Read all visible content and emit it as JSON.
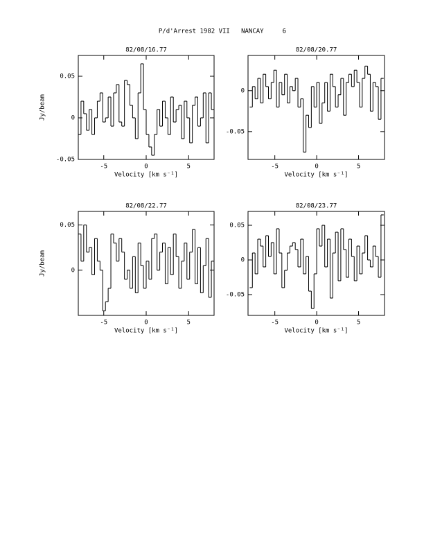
{
  "page_title": "P/d'Arrest 1982 VII   NANCAY     6",
  "chart_data": [
    {
      "type": "line",
      "step": true,
      "title": "82/08/16.77",
      "xlabel": "Velocity [km s⁻¹]",
      "ylabel": "Jy/beam",
      "color": "#000000",
      "xlim": [
        -8,
        8
      ],
      "ylim": [
        -0.05,
        0.075
      ],
      "xticks": [
        -5,
        0,
        5
      ],
      "yticks": [
        -0.05,
        0,
        0.05
      ],
      "x": [
        -7.84,
        -7.52,
        -7.2,
        -6.88,
        -6.56,
        -6.24,
        -5.92,
        -5.6,
        -5.28,
        -4.96,
        -4.64,
        -4.32,
        -4,
        -3.68,
        -3.36,
        -3.04,
        -2.72,
        -2.4,
        -2.08,
        -1.76,
        -1.44,
        -1.12,
        -0.8,
        -0.48,
        -0.16,
        0.16,
        0.48,
        0.8,
        1.12,
        1.44,
        1.76,
        2.08,
        2.4,
        2.72,
        3.04,
        3.36,
        3.68,
        4,
        4.32,
        4.64,
        4.96,
        5.28,
        5.6,
        5.92,
        6.24,
        6.56,
        6.88,
        7.2,
        7.52,
        7.84
      ],
      "values": [
        -0.02,
        0.02,
        0.005,
        -0.015,
        0.01,
        -0.02,
        0,
        0.02,
        0.03,
        -0.005,
        0,
        0.025,
        -0.01,
        0.03,
        0.04,
        -0.005,
        -0.01,
        0.045,
        0.04,
        0.015,
        0,
        -0.025,
        0.03,
        0.065,
        0.01,
        -0.02,
        -0.035,
        -0.045,
        -0.02,
        0.01,
        -0.01,
        0.02,
        0,
        -0.02,
        0.025,
        -0.005,
        0.01,
        0.015,
        -0.025,
        0.02,
        0,
        -0.03,
        0.015,
        0.025,
        -0.01,
        0,
        0.03,
        -0.03,
        0.03,
        0.01
      ]
    },
    {
      "type": "line",
      "step": true,
      "title": "82/08/20.77",
      "xlabel": "Velocity [km s⁻¹]",
      "color": "#000000",
      "xlim": [
        -8.2,
        8.1
      ],
      "ylim": [
        -0.084,
        0.043
      ],
      "xticks": [
        -5,
        0,
        5
      ],
      "yticks": [
        -0.05,
        0
      ],
      "x": [
        -7.84,
        -7.52,
        -7.2,
        -6.88,
        -6.56,
        -6.24,
        -5.92,
        -5.6,
        -5.28,
        -4.96,
        -4.64,
        -4.32,
        -4,
        -3.68,
        -3.36,
        -3.04,
        -2.72,
        -2.4,
        -2.08,
        -1.76,
        -1.44,
        -1.12,
        -0.8,
        -0.48,
        -0.16,
        0.16,
        0.48,
        0.8,
        1.12,
        1.44,
        1.76,
        2.08,
        2.4,
        2.72,
        3.04,
        3.36,
        3.68,
        4,
        4.32,
        4.64,
        4.96,
        5.28,
        5.6,
        5.92,
        6.24,
        6.56,
        6.88,
        7.2,
        7.52,
        7.84
      ],
      "values": [
        -0.02,
        0.005,
        -0.01,
        0.015,
        -0.015,
        0.02,
        0.005,
        -0.01,
        0.01,
        0.025,
        -0.02,
        0.01,
        -0.005,
        0.02,
        -0.015,
        0.005,
        0,
        0.015,
        -0.02,
        -0.01,
        -0.075,
        -0.03,
        -0.045,
        0.005,
        -0.02,
        0.01,
        -0.04,
        -0.015,
        0.01,
        -0.025,
        0.02,
        0.005,
        -0.02,
        -0.005,
        0.015,
        -0.03,
        0.01,
        0.02,
        0.005,
        0.025,
        0.01,
        -0.02,
        0.015,
        0.03,
        0.02,
        -0.025,
        0.01,
        0.005,
        -0.035,
        0.015
      ]
    },
    {
      "type": "line",
      "step": true,
      "title": "82/08/22.77",
      "xlabel": "Velocity [km s⁻¹]",
      "ylabel": "Jy/beam",
      "color": "#000000",
      "xlim": [
        -8,
        8
      ],
      "ylim": [
        -0.05,
        0.065
      ],
      "xticks": [
        -5,
        0,
        5
      ],
      "yticks": [
        0,
        0.05
      ],
      "x": [
        -7.84,
        -7.52,
        -7.2,
        -6.88,
        -6.56,
        -6.24,
        -5.92,
        -5.6,
        -5.28,
        -4.96,
        -4.64,
        -4.32,
        -4,
        -3.68,
        -3.36,
        -3.04,
        -2.72,
        -2.4,
        -2.08,
        -1.76,
        -1.44,
        -1.12,
        -0.8,
        -0.48,
        -0.16,
        0.16,
        0.48,
        0.8,
        1.12,
        1.44,
        1.76,
        2.08,
        2.4,
        2.72,
        3.04,
        3.36,
        3.68,
        4,
        4.32,
        4.64,
        4.96,
        5.28,
        5.6,
        5.92,
        6.24,
        6.56,
        6.88,
        7.2,
        7.52,
        7.84
      ],
      "values": [
        0.04,
        0.01,
        0.05,
        0.02,
        0.025,
        -0.005,
        0.035,
        0.01,
        0,
        -0.045,
        -0.035,
        -0.02,
        0.04,
        0.03,
        0.01,
        0.035,
        0.02,
        -0.01,
        0,
        -0.02,
        0.015,
        -0.025,
        0.03,
        0.005,
        -0.02,
        0.01,
        -0.01,
        0.035,
        0.04,
        0,
        0.02,
        0.03,
        -0.015,
        0.025,
        -0.005,
        0.04,
        0.015,
        -0.02,
        0.01,
        0.03,
        -0.01,
        0.02,
        0.045,
        -0.015,
        0.025,
        -0.025,
        0.005,
        0.035,
        -0.03,
        0.01
      ]
    },
    {
      "type": "line",
      "step": true,
      "title": "82/08/23.77",
      "xlabel": "Velocity [km s⁻¹]",
      "color": "#000000",
      "xlim": [
        -8.2,
        8.1
      ],
      "ylim": [
        -0.08,
        0.07
      ],
      "xticks": [
        -5,
        0,
        5
      ],
      "yticks": [
        -0.05,
        0,
        0.05
      ],
      "x": [
        -7.84,
        -7.52,
        -7.2,
        -6.88,
        -6.56,
        -6.24,
        -5.92,
        -5.6,
        -5.28,
        -4.96,
        -4.64,
        -4.32,
        -4,
        -3.68,
        -3.36,
        -3.04,
        -2.72,
        -2.4,
        -2.08,
        -1.76,
        -1.44,
        -1.12,
        -0.8,
        -0.48,
        -0.16,
        0.16,
        0.48,
        0.8,
        1.12,
        1.44,
        1.76,
        2.08,
        2.4,
        2.72,
        3.04,
        3.36,
        3.68,
        4,
        4.32,
        4.64,
        4.96,
        5.28,
        5.6,
        5.92,
        6.24,
        6.56,
        6.88,
        7.2,
        7.52,
        7.84
      ],
      "values": [
        -0.04,
        0.01,
        -0.02,
        0.03,
        0.02,
        -0.01,
        0.035,
        0.005,
        0.025,
        -0.02,
        0.045,
        0.01,
        -0.04,
        -0.015,
        0.01,
        0.02,
        0.025,
        0.015,
        -0.01,
        0.03,
        -0.02,
        0.005,
        -0.045,
        -0.07,
        -0.02,
        0.045,
        0.02,
        0.05,
        -0.01,
        0.03,
        -0.055,
        0.01,
        0.04,
        -0.03,
        0.045,
        0.015,
        -0.025,
        0.03,
        0.005,
        -0.03,
        0.02,
        -0.02,
        0.01,
        0.035,
        0,
        -0.01,
        0.02,
        0.005,
        -0.025,
        0.065
      ]
    }
  ]
}
